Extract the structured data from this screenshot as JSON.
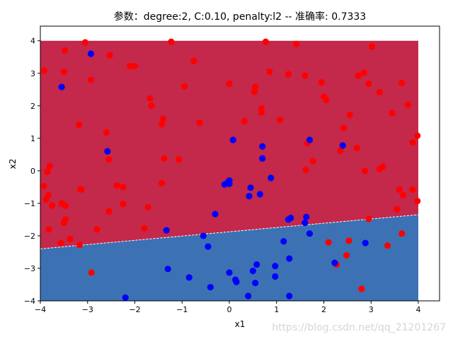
{
  "chart_data": {
    "type": "scatter",
    "title": "参数：degree:2, C:0.10, penalty:l2 -- 准确率: 0.7333",
    "xlabel": "x1",
    "ylabel": "x2",
    "xlim": [
      -4,
      4.45
    ],
    "ylim": [
      -4,
      4.45
    ],
    "xticks": [
      -4,
      -3,
      -2,
      -1,
      0,
      1,
      2,
      3,
      4
    ],
    "yticks": [
      -4,
      -3,
      -2,
      -1,
      0,
      1,
      2,
      3,
      4
    ],
    "grid": false,
    "legend": "none",
    "background_regions": {
      "x_range": [
        -4,
        4
      ],
      "y_range": [
        -4,
        4
      ],
      "boundary_line": {
        "x": [
          -4,
          4
        ],
        "y": [
          -2.4,
          -1.35
        ]
      },
      "upper_class_color": "#c4284a",
      "lower_class_color": "#3c72b4"
    },
    "series": [
      {
        "color": "#ff0000",
        "points": [
          [
            -3.05,
            3.95
          ],
          [
            -1.23,
            3.97
          ],
          [
            0.77,
            3.97
          ],
          [
            1.42,
            3.9
          ],
          [
            3.02,
            3.82
          ],
          [
            -3.48,
            3.7
          ],
          [
            -2.53,
            3.55
          ],
          [
            -3.92,
            3.08
          ],
          [
            -3.5,
            3.05
          ],
          [
            -2.1,
            3.22
          ],
          [
            -2.0,
            3.22
          ],
          [
            -0.75,
            3.38
          ],
          [
            0.85,
            3.05
          ],
          [
            1.25,
            2.97
          ],
          [
            1.6,
            2.93
          ],
          [
            2.73,
            2.93
          ],
          [
            2.85,
            3.02
          ],
          [
            -2.93,
            2.8
          ],
          [
            -0.95,
            2.6
          ],
          [
            0.0,
            2.68
          ],
          [
            0.55,
            2.58
          ],
          [
            0.53,
            2.43
          ],
          [
            1.95,
            2.72
          ],
          [
            2.95,
            2.68
          ],
          [
            3.65,
            2.7
          ],
          [
            3.18,
            2.42
          ],
          [
            -1.68,
            2.23
          ],
          [
            -1.65,
            2.0
          ],
          [
            2.0,
            2.28
          ],
          [
            2.05,
            2.18
          ],
          [
            0.68,
            1.92
          ],
          [
            0.68,
            1.8
          ],
          [
            2.55,
            1.72
          ],
          [
            3.45,
            1.78
          ],
          [
            3.78,
            2.03
          ],
          [
            -1.4,
            1.6
          ],
          [
            -0.63,
            1.48
          ],
          [
            -1.43,
            1.43
          ],
          [
            -3.18,
            1.42
          ],
          [
            0.32,
            1.52
          ],
          [
            1.07,
            1.57
          ],
          [
            2.42,
            1.32
          ],
          [
            -2.6,
            1.18
          ],
          [
            3.98,
            1.08
          ],
          [
            3.88,
            0.87
          ],
          [
            1.65,
            0.85
          ],
          [
            2.7,
            0.7
          ],
          [
            2.35,
            0.62
          ],
          [
            -1.38,
            0.38
          ],
          [
            -1.07,
            0.35
          ],
          [
            -2.55,
            0.35
          ],
          [
            1.77,
            0.3
          ],
          [
            -3.8,
            0.15
          ],
          [
            -3.85,
            -0.03
          ],
          [
            1.62,
            0.03
          ],
          [
            3.25,
            0.13
          ],
          [
            3.18,
            0.05
          ],
          [
            2.87,
            0.0
          ],
          [
            -2.38,
            -0.45
          ],
          [
            -2.25,
            -0.5
          ],
          [
            -3.93,
            -0.47
          ],
          [
            -3.13,
            -0.57
          ],
          [
            -3.15,
            -0.57
          ],
          [
            -1.43,
            -0.38
          ],
          [
            3.6,
            -0.58
          ],
          [
            3.88,
            -0.58
          ],
          [
            3.68,
            -0.75
          ],
          [
            -3.83,
            -0.75
          ],
          [
            -3.88,
            -0.88
          ],
          [
            -3.55,
            -1.0
          ],
          [
            -3.47,
            -1.07
          ],
          [
            -3.75,
            -1.07
          ],
          [
            -2.25,
            -1.02
          ],
          [
            -1.72,
            -1.12
          ],
          [
            -2.55,
            -1.25
          ],
          [
            3.55,
            -1.18
          ],
          [
            3.98,
            -0.93
          ],
          [
            2.95,
            -1.48
          ],
          [
            -3.47,
            -1.5
          ],
          [
            -3.5,
            -1.6
          ],
          [
            -2.8,
            -1.8
          ],
          [
            -3.82,
            -1.8
          ],
          [
            -1.8,
            -1.77
          ],
          [
            -3.37,
            -2.1
          ],
          [
            -3.57,
            -2.23
          ],
          [
            -3.17,
            -2.28
          ],
          [
            2.1,
            -2.2
          ],
          [
            2.53,
            -2.15
          ],
          [
            3.65,
            -1.93
          ],
          [
            3.35,
            -2.3
          ],
          [
            2.48,
            -2.6
          ],
          [
            2.27,
            -2.88
          ],
          [
            -2.92,
            -3.13
          ],
          [
            2.8,
            -3.63
          ]
        ]
      },
      {
        "color": "#0000ff",
        "points": [
          [
            -2.93,
            3.6
          ],
          [
            -3.55,
            2.58
          ],
          [
            0.08,
            0.95
          ],
          [
            1.7,
            0.95
          ],
          [
            0.7,
            0.75
          ],
          [
            2.4,
            0.78
          ],
          [
            -2.58,
            0.6
          ],
          [
            0.7,
            0.38
          ],
          [
            0.88,
            -0.22
          ],
          [
            0.0,
            -0.3
          ],
          [
            -0.1,
            -0.42
          ],
          [
            0.0,
            -0.4
          ],
          [
            -0.03,
            -0.35
          ],
          [
            0.45,
            -0.52
          ],
          [
            0.42,
            -0.78
          ],
          [
            0.65,
            -0.72
          ],
          [
            -0.3,
            -1.33
          ],
          [
            -1.33,
            -1.83
          ],
          [
            1.63,
            -1.42
          ],
          [
            1.25,
            -1.5
          ],
          [
            1.3,
            -1.45
          ],
          [
            1.6,
            -1.6
          ],
          [
            1.7,
            -1.93
          ],
          [
            -0.55,
            -2.0
          ],
          [
            1.15,
            -2.17
          ],
          [
            2.88,
            -2.22
          ],
          [
            -0.45,
            -2.33
          ],
          [
            1.27,
            -2.7
          ],
          [
            2.23,
            -2.83
          ],
          [
            0.58,
            -2.88
          ],
          [
            0.97,
            -2.93
          ],
          [
            -1.3,
            -3.02
          ],
          [
            0.5,
            -3.08
          ],
          [
            0.0,
            -3.13
          ],
          [
            0.97,
            -3.25
          ],
          [
            -0.85,
            -3.28
          ],
          [
            0.13,
            -3.35
          ],
          [
            0.15,
            -3.42
          ],
          [
            0.55,
            -3.45
          ],
          [
            -0.4,
            -3.58
          ],
          [
            -2.2,
            -3.9
          ],
          [
            0.4,
            -3.85
          ],
          [
            1.27,
            -3.85
          ]
        ]
      }
    ]
  },
  "watermark": "https://blog.csdn.net/qq_21201267"
}
